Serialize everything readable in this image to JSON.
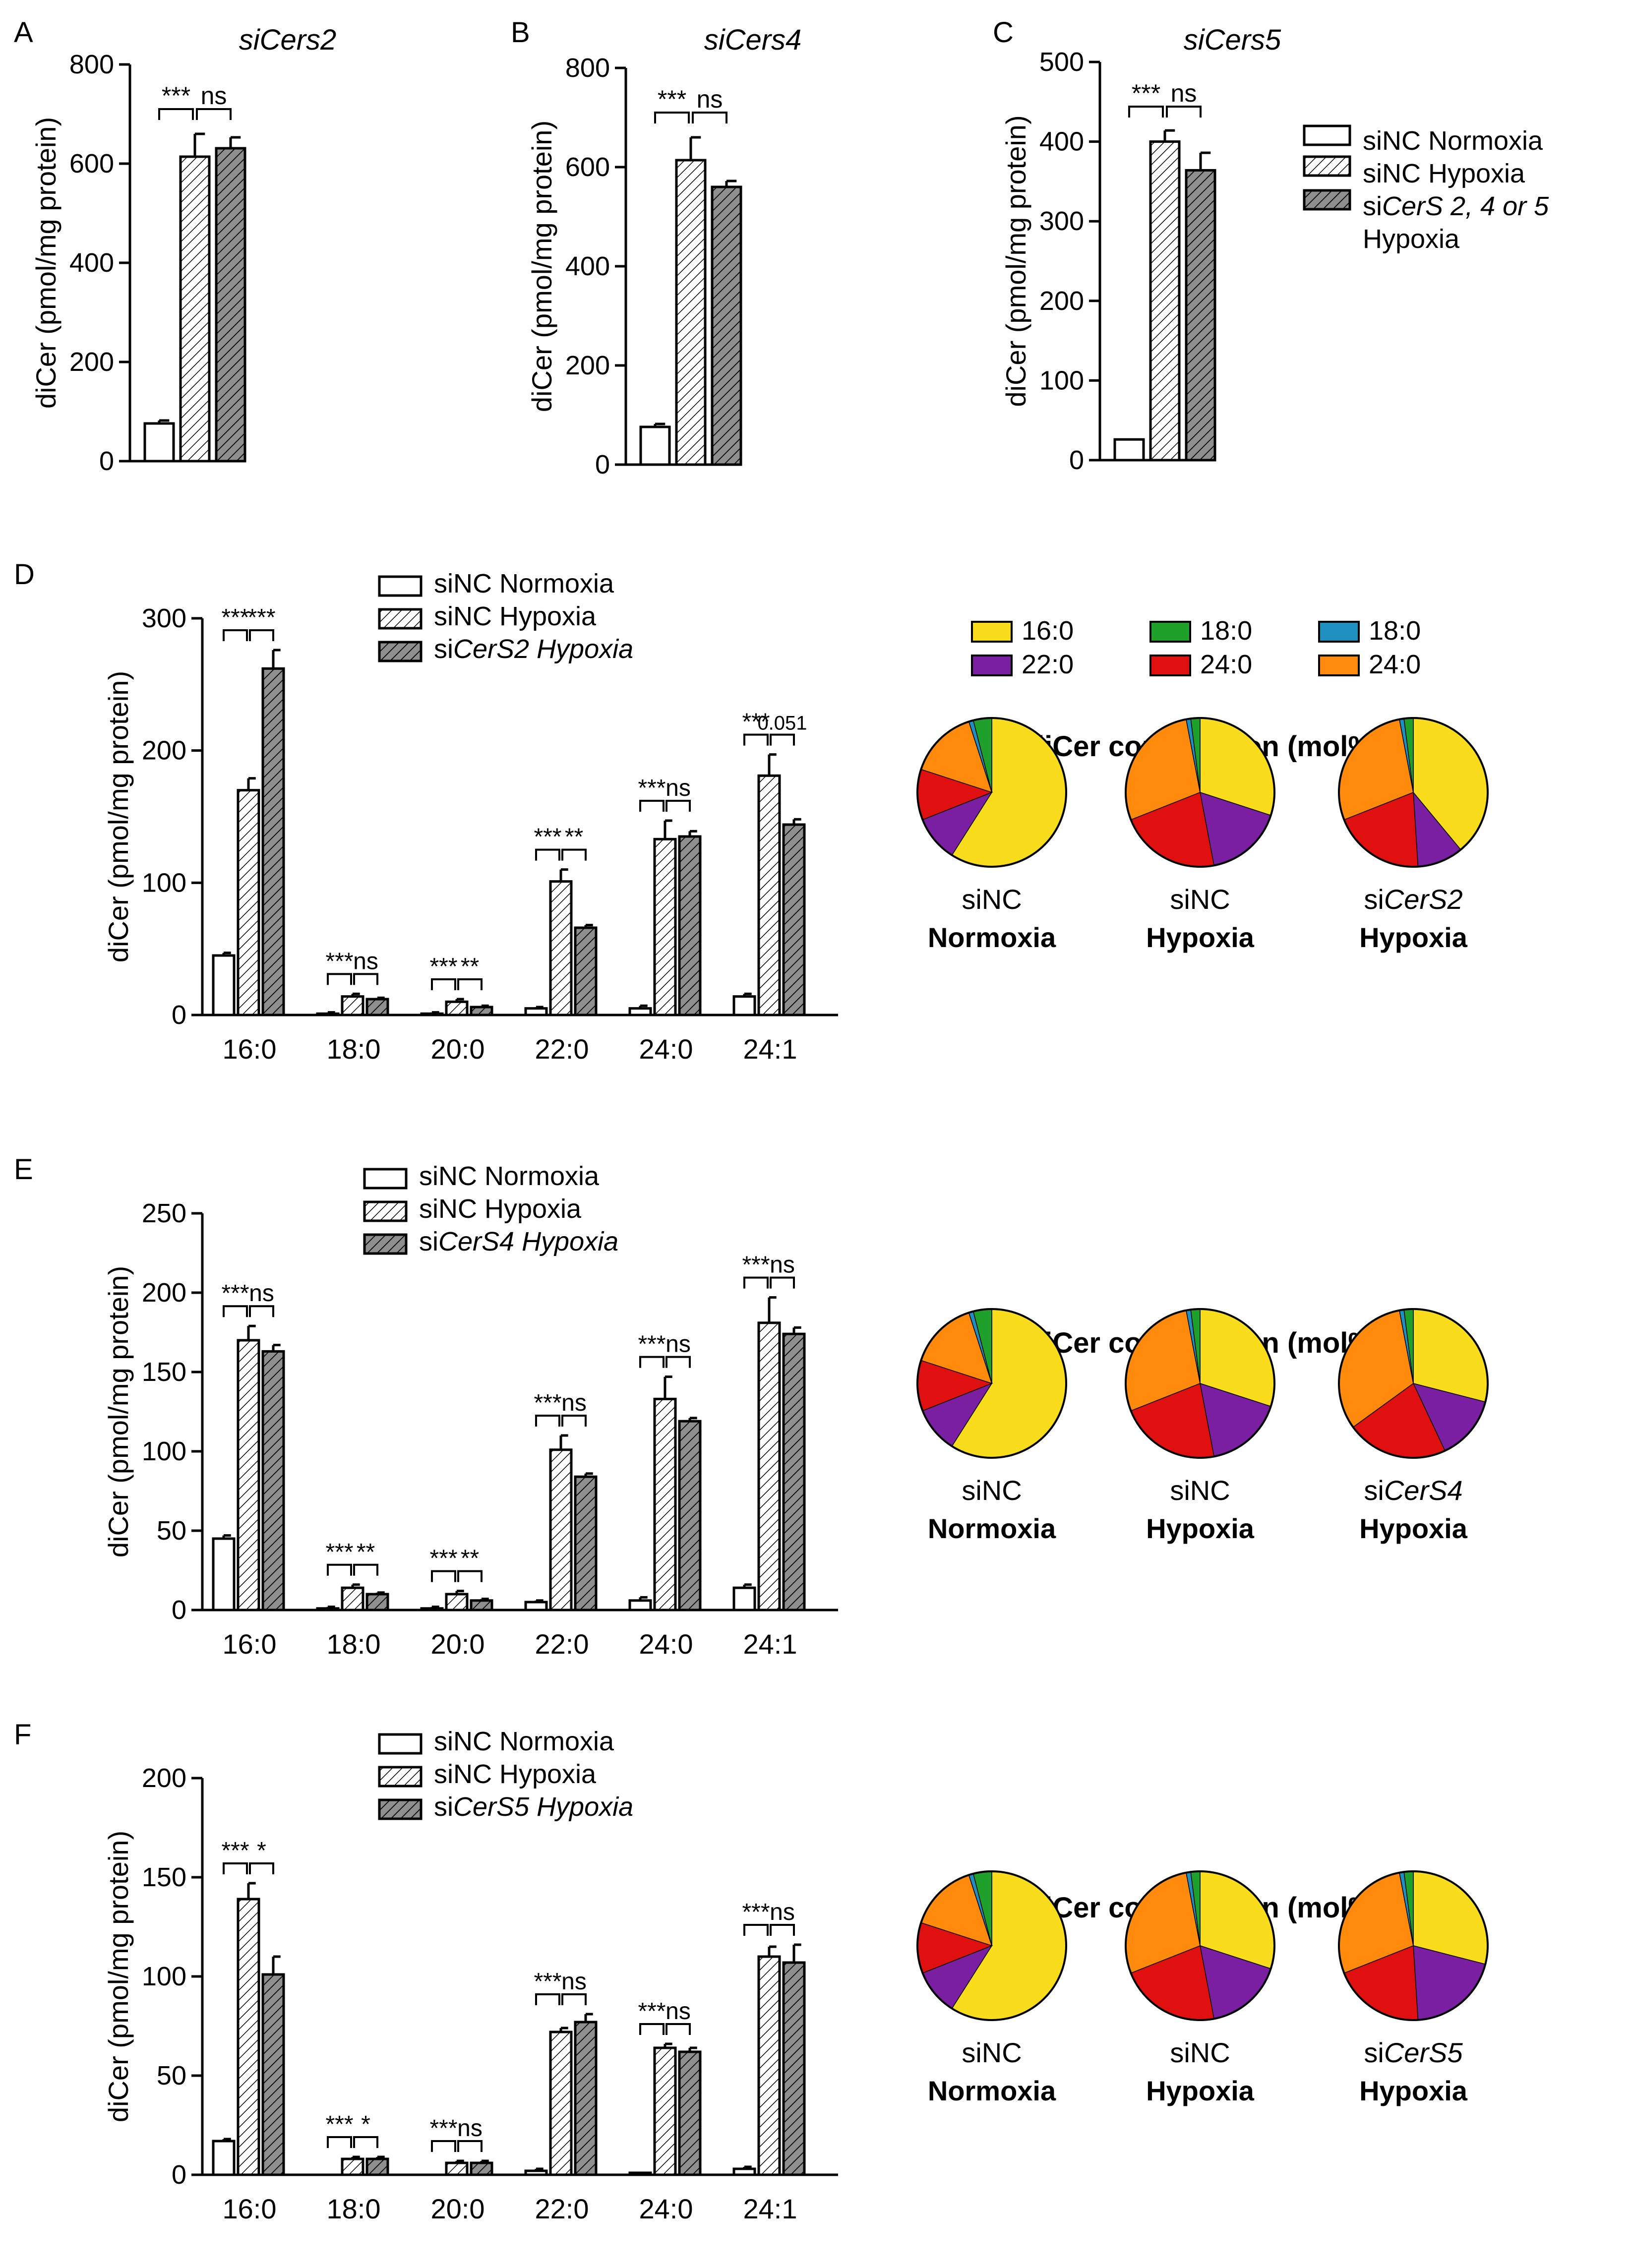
{
  "figure": {
    "kind": "multi-panel bar and pie chart figure"
  },
  "colors": {
    "normoxia_fill": "#ffffff",
    "hypoxia_fill": "#ffffff",
    "knockdown_fill": "#8f8f8f",
    "hatch": "#000000",
    "axis": "#000000"
  },
  "common": {
    "ylabel": "diCer (pmol/mg protein)",
    "pie_title": "diCer composition (mol%)"
  },
  "legend_top": [
    "siNC Normoxia",
    "siNC Hypoxia",
    "siCerS 2, 4 or 5",
    "Hypoxia"
  ],
  "pie_legend": [
    "16:0",
    "18:0",
    "18:0",
    "22:0",
    "24:0",
    "24:0"
  ],
  "pie_colors": [
    "#f9dc1c",
    "#1fa02b",
    "#1f8fbf",
    "#7b1fa2",
    "#e01010",
    "#ff8a0c"
  ],
  "pie_order": [
    0,
    3,
    4,
    5,
    2,
    1
  ],
  "chart_data": [
    {
      "panel": "A",
      "type": "bar",
      "title": "siCers2",
      "ylabel": "diCer (pmol/mg protein)",
      "ylim": [
        0,
        800
      ],
      "ticks": [
        0,
        200,
        400,
        600,
        800
      ],
      "series": [
        {
          "name": "siNC Normoxia",
          "values": [
            76
          ],
          "errors": [
            6
          ]
        },
        {
          "name": "siNC Hypoxia",
          "values": [
            614
          ],
          "errors": [
            46
          ]
        },
        {
          "name": "siCerS2 Hypoxia",
          "values": [
            631
          ],
          "errors": [
            22
          ]
        }
      ],
      "annotations": [
        [
          "***",
          "ns"
        ]
      ]
    },
    {
      "panel": "B",
      "type": "bar",
      "title": "siCers4",
      "ylabel": "diCer (pmol/mg protein)",
      "ylim": [
        0,
        800
      ],
      "ticks": [
        0,
        200,
        400,
        600,
        800
      ],
      "series": [
        {
          "name": "siNC Normoxia",
          "values": [
            76
          ],
          "errors": [
            6
          ]
        },
        {
          "name": "siNC Hypoxia",
          "values": [
            614
          ],
          "errors": [
            46
          ]
        },
        {
          "name": "siCerS4 Hypoxia",
          "values": [
            560
          ],
          "errors": [
            12
          ]
        }
      ],
      "annotations": [
        [
          "***",
          "ns"
        ]
      ]
    },
    {
      "panel": "C",
      "type": "bar",
      "title": "siCers5",
      "ylabel": "diCer (pmol/mg protein)",
      "ylim": [
        0,
        500
      ],
      "ticks": [
        0,
        100,
        200,
        300,
        400,
        500
      ],
      "series": [
        {
          "name": "siNC Normoxia",
          "values": [
            26
          ],
          "errors": [
            0
          ]
        },
        {
          "name": "siNC Hypoxia",
          "values": [
            400
          ],
          "errors": [
            14
          ]
        },
        {
          "name": "siCerS5 Hypoxia",
          "values": [
            364
          ],
          "errors": [
            22
          ]
        }
      ],
      "annotations": [
        [
          "***",
          "ns"
        ]
      ]
    },
    {
      "panel": "D",
      "type": "bar",
      "ylabel": "diCer (pmol/mg protein)",
      "ylim": [
        0,
        300
      ],
      "ticks": [
        0,
        100,
        200,
        300
      ],
      "categories": [
        "16:0",
        "18:0",
        "20:0",
        "22:0",
        "24:0",
        "24:1"
      ],
      "legend": [
        "siNC Normoxia",
        "siNC Hypoxia",
        "siCerS2 Hypoxia"
      ],
      "series": [
        {
          "name": "siNC Normoxia",
          "values": [
            45,
            1,
            1,
            5,
            5,
            14
          ],
          "errors": [
            2,
            1,
            1,
            1,
            2,
            2
          ]
        },
        {
          "name": "siNC Hypoxia",
          "values": [
            170,
            14,
            10,
            101,
            133,
            181
          ],
          "errors": [
            9,
            2,
            2,
            9,
            14,
            16
          ]
        },
        {
          "name": "siCerS2 Hypoxia",
          "values": [
            262,
            12,
            6,
            66,
            135,
            144
          ],
          "errors": [
            14,
            1,
            1,
            2,
            4,
            4
          ]
        }
      ],
      "annotations": [
        [
          "***",
          "***"
        ],
        [
          "***",
          "ns"
        ],
        [
          "***",
          "**"
        ],
        [
          "***",
          "**"
        ],
        [
          "***",
          "ns"
        ],
        [
          "***",
          "0.051"
        ]
      ],
      "pies": [
        {
          "label": "siNC",
          "condition": "Normoxia",
          "values": [
            59,
            4,
            1,
            10,
            11,
            15
          ]
        },
        {
          "label": "siNC",
          "condition": "Hypoxia",
          "values": [
            30,
            2,
            1,
            17,
            22,
            28
          ]
        },
        {
          "label": "siCerS2",
          "condition": "Hypoxia",
          "values": [
            39,
            2,
            1,
            10,
            20,
            28
          ]
        }
      ]
    },
    {
      "panel": "E",
      "type": "bar",
      "ylabel": "diCer (pmol/mg protein)",
      "ylim": [
        0,
        250
      ],
      "ticks": [
        0,
        50,
        100,
        150,
        200,
        250
      ],
      "categories": [
        "16:0",
        "18:0",
        "20:0",
        "22:0",
        "24:0",
        "24:1"
      ],
      "legend": [
        "siNC Normoxia",
        "siNC Hypoxia",
        "siCerS4 Hypoxia"
      ],
      "series": [
        {
          "name": "siNC Normoxia",
          "values": [
            45,
            1,
            1,
            5,
            6,
            14
          ],
          "errors": [
            2,
            1,
            1,
            1,
            2,
            2
          ]
        },
        {
          "name": "siNC Hypoxia",
          "values": [
            170,
            14,
            10,
            101,
            133,
            181
          ],
          "errors": [
            9,
            2,
            2,
            9,
            14,
            16
          ]
        },
        {
          "name": "siCerS4 Hypoxia",
          "values": [
            163,
            10,
            6,
            84,
            119,
            174
          ],
          "errors": [
            4,
            1,
            1,
            2,
            2,
            4
          ]
        }
      ],
      "annotations": [
        [
          "***",
          "ns"
        ],
        [
          "***",
          "**"
        ],
        [
          "***",
          "**"
        ],
        [
          "***",
          "ns"
        ],
        [
          "***",
          "ns"
        ],
        [
          "***",
          "ns"
        ]
      ],
      "pies": [
        {
          "label": "siNC",
          "condition": "Normoxia",
          "values": [
            59,
            4,
            1,
            10,
            11,
            15
          ]
        },
        {
          "label": "siNC",
          "condition": "Hypoxia",
          "values": [
            30,
            2,
            1,
            17,
            22,
            28
          ]
        },
        {
          "label": "siCerS4",
          "condition": "Hypoxia",
          "values": [
            29,
            2,
            1,
            14,
            22,
            32
          ]
        }
      ]
    },
    {
      "panel": "F",
      "type": "bar",
      "ylabel": "diCer (pmol/mg protein)",
      "ylim": [
        0,
        200
      ],
      "ticks": [
        0,
        50,
        100,
        150,
        200
      ],
      "categories": [
        "16:0",
        "18:0",
        "20:0",
        "22:0",
        "24:0",
        "24:1"
      ],
      "legend": [
        "siNC Normoxia",
        "siNC Hypoxia",
        "siCerS5 Hypoxia"
      ],
      "series": [
        {
          "name": "siNC Normoxia",
          "values": [
            17,
            0,
            0,
            2,
            1,
            3
          ],
          "errors": [
            1,
            0,
            0,
            1,
            0,
            1
          ]
        },
        {
          "name": "siNC Hypoxia",
          "values": [
            139,
            8,
            6,
            72,
            64,
            110
          ],
          "errors": [
            8,
            1,
            1,
            2,
            2,
            5
          ]
        },
        {
          "name": "siCerS5 Hypoxia",
          "values": [
            101,
            8,
            6,
            77,
            62,
            107
          ],
          "errors": [
            9,
            1,
            1,
            4,
            2,
            9
          ]
        }
      ],
      "annotations": [
        [
          "***",
          "*"
        ],
        [
          "***",
          "*"
        ],
        [
          "***",
          "ns"
        ],
        [
          "***",
          "ns"
        ],
        [
          "***",
          "ns"
        ],
        [
          "***",
          "ns"
        ]
      ],
      "pies": [
        {
          "label": "siNC",
          "condition": "Normoxia",
          "values": [
            59,
            4,
            1,
            10,
            11,
            15
          ]
        },
        {
          "label": "siNC",
          "condition": "Hypoxia",
          "values": [
            30,
            2,
            1,
            17,
            22,
            28
          ]
        },
        {
          "label": "siCerS5",
          "condition": "Hypoxia",
          "values": [
            29,
            2,
            1,
            20,
            20,
            28
          ]
        }
      ]
    }
  ]
}
